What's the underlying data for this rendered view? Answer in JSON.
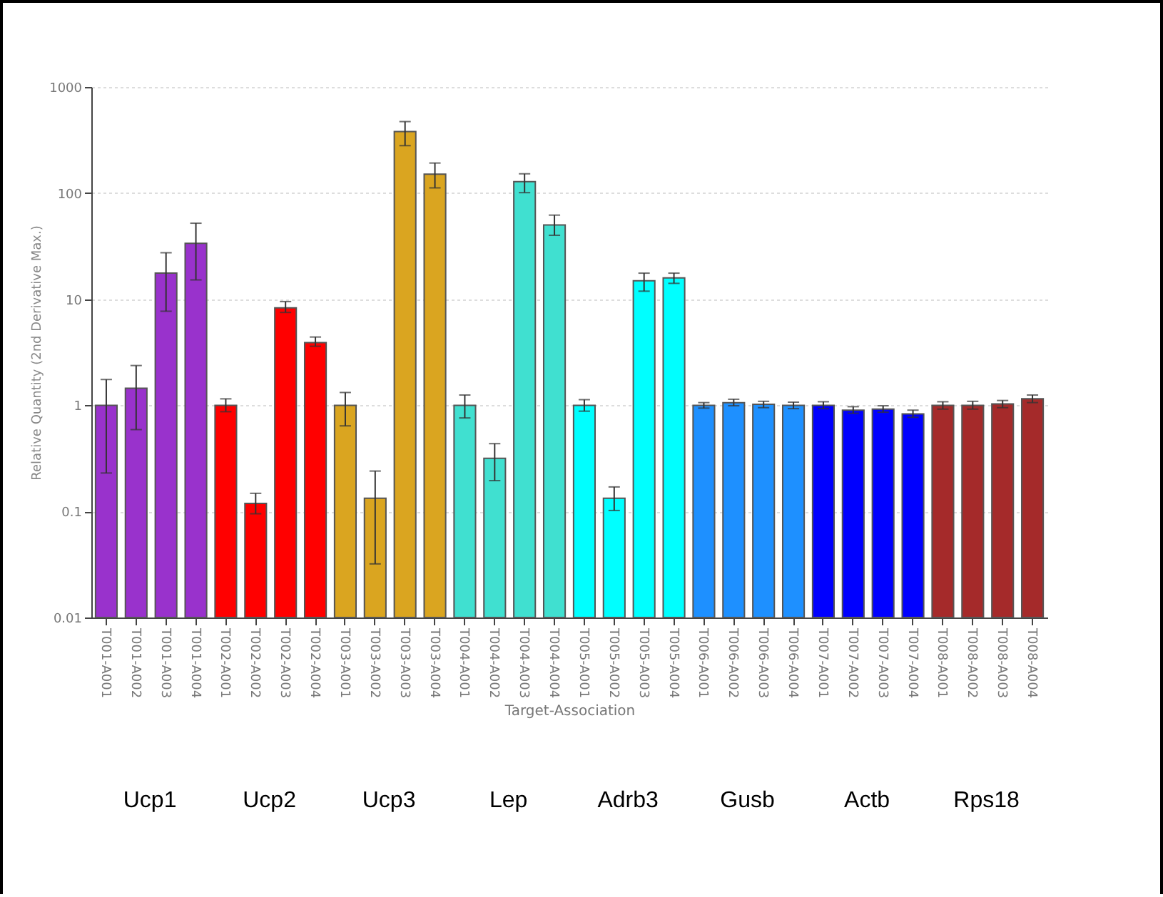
{
  "chart_data": {
    "type": "bar",
    "xlabel": "Target-Association",
    "ylabel": "Relative Quantity (2nd Derivative Max.)",
    "categories": [
      "T001-A001",
      "T001-A002",
      "T001-A003",
      "T001-A004",
      "T002-A001",
      "T002-A002",
      "T002-A003",
      "T002-A004",
      "T003-A001",
      "T003-A002",
      "T003-A003",
      "T003-A004",
      "T004-A001",
      "T004-A002",
      "T004-A003",
      "T004-A004",
      "T005-A001",
      "T005-A002",
      "T005-A003",
      "T005-A004",
      "T006-A001",
      "T006-A002",
      "T006-A003",
      "T006-A004",
      "T007-A001",
      "T007-A002",
      "T007-A003",
      "T007-A004",
      "T008-A001",
      "T008-A002",
      "T008-A003",
      "T008-A004"
    ],
    "values": [
      1,
      1.45,
      17.6,
      33.6,
      1,
      0.119,
      8.3,
      3.9,
      1,
      0.133,
      380,
      151,
      1,
      0.316,
      128,
      50,
      1,
      0.133,
      14.9,
      15.9,
      1,
      1.06,
      1.02,
      1,
      1,
      0.9,
      0.92,
      0.83,
      1,
      1,
      1.03,
      1.15
    ],
    "errors": [
      [
        0.23,
        1.75
      ],
      [
        0.59,
        2.37
      ],
      [
        7.7,
        27.4
      ],
      [
        15.2,
        52
      ],
      [
        0.87,
        1.15
      ],
      [
        0.095,
        0.148
      ],
      [
        7.5,
        9.5
      ],
      [
        3.6,
        4.4
      ],
      [
        0.64,
        1.32
      ],
      [
        0.032,
        0.24
      ],
      [
        280,
        472
      ],
      [
        112,
        192
      ],
      [
        0.76,
        1.25
      ],
      [
        0.195,
        0.435
      ],
      [
        101,
        152
      ],
      [
        40,
        62
      ],
      [
        0.88,
        1.13
      ],
      [
        0.102,
        0.17
      ],
      [
        11.9,
        17.6
      ],
      [
        14.1,
        17.6
      ],
      [
        0.94,
        1.06
      ],
      [
        0.99,
        1.14
      ],
      [
        0.95,
        1.09
      ],
      [
        0.93,
        1.07
      ],
      [
        0.93,
        1.08
      ],
      [
        0.84,
        0.97
      ],
      [
        0.86,
        0.99
      ],
      [
        0.77,
        0.9
      ],
      [
        0.92,
        1.08
      ],
      [
        0.92,
        1.09
      ],
      [
        0.95,
        1.11
      ],
      [
        1.06,
        1.25
      ]
    ],
    "colors": [
      "#9932cc",
      "#9932cc",
      "#9932cc",
      "#9932cc",
      "#ff0000",
      "#ff0000",
      "#ff0000",
      "#ff0000",
      "#daa520",
      "#daa520",
      "#daa520",
      "#daa520",
      "#40e0d0",
      "#40e0d0",
      "#40e0d0",
      "#40e0d0",
      "#00ffff",
      "#00ffff",
      "#00ffff",
      "#00ffff",
      "#1e90ff",
      "#1e90ff",
      "#1e90ff",
      "#1e90ff",
      "#0000ff",
      "#0000ff",
      "#0000ff",
      "#0000ff",
      "#a52a2a",
      "#a52a2a",
      "#a52a2a",
      "#a52a2a"
    ],
    "log": "y",
    "ylim": [
      0.01,
      1000
    ],
    "yticks": [
      0.01,
      0.1,
      1,
      10,
      100,
      1000
    ],
    "grid": "y",
    "annotations": [
      "Ucp1",
      "Ucp2",
      "Ucp3",
      "Lep",
      "Adrb3",
      "Gusb",
      "Actb",
      "Rps18"
    ]
  }
}
